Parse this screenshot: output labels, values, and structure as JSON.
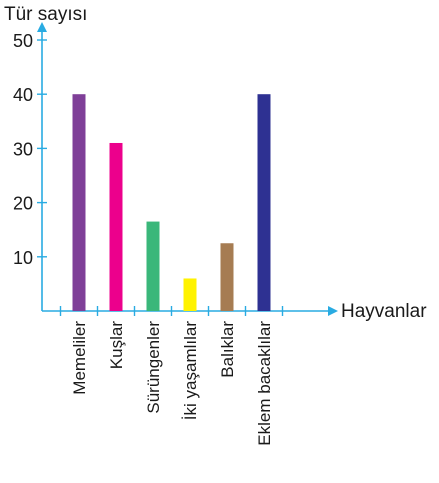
{
  "chart_data": {
    "type": "bar",
    "ylabel": "Tür sayısı",
    "xlabel": "Hayvanlar",
    "categories": [
      "Memeliler",
      "Kuşlar",
      "Sürüngenler",
      "İki  yaşamlılar",
      "Balıklar",
      "Eklem bacaklılar"
    ],
    "values": [
      40,
      31,
      16.5,
      6,
      12.5,
      40
    ],
    "colors": [
      "#7f3f98",
      "#ec008c",
      "#3ab77a",
      "#fff200",
      "#a67c52",
      "#2e3192"
    ],
    "yticks": [
      10,
      20,
      30,
      40,
      50
    ],
    "ylim": [
      0,
      50
    ],
    "grid": false,
    "axis_color": "#29abe2"
  }
}
